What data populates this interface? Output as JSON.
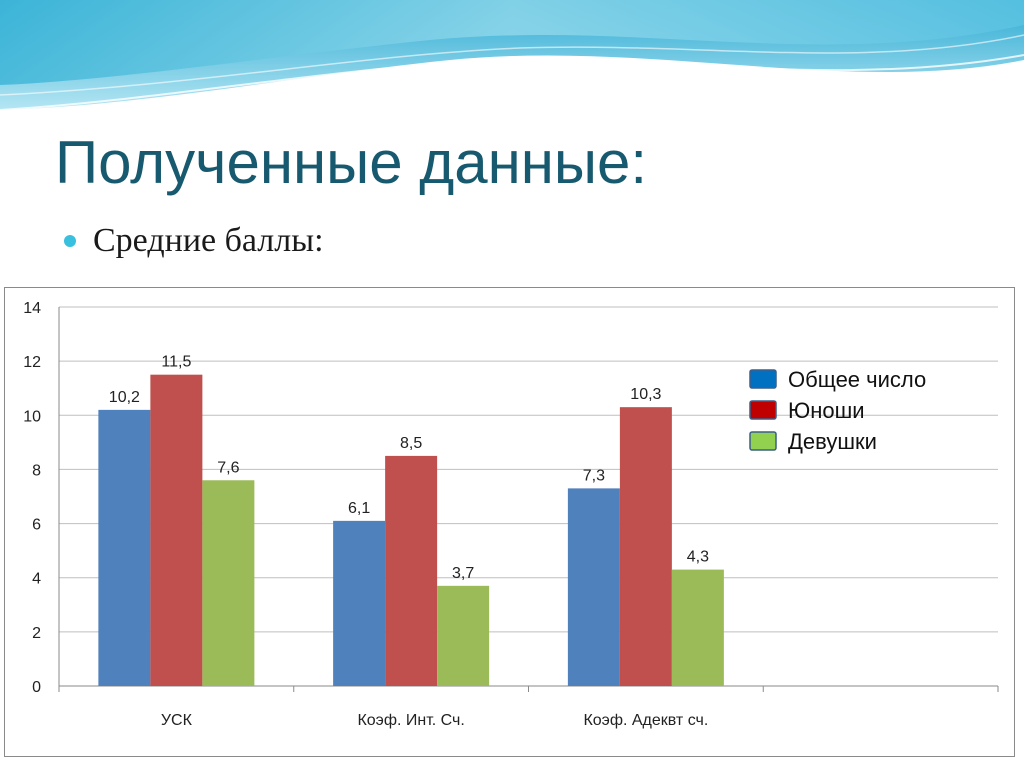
{
  "slide": {
    "title": "Полученные данные:",
    "bullet": "Средние баллы:"
  },
  "colors": {
    "title": "#17596e",
    "bullet": "#38c0de",
    "series": [
      "#4f81bd",
      "#c0504d",
      "#9bbb59"
    ],
    "legend_swatches": [
      "#0070c0",
      "#c00000",
      "#92d050"
    ]
  },
  "chart_data": {
    "type": "bar",
    "categories": [
      "УСК",
      "Коэф. Инт. Сч.",
      "Коэф. Адеквт сч."
    ],
    "series": [
      {
        "name": "Общее число",
        "values": [
          10.2,
          6.1,
          7.3
        ],
        "labels": [
          "10,2",
          "6,1",
          "7,3"
        ]
      },
      {
        "name": "Юноши",
        "values": [
          11.5,
          8.5,
          10.3
        ],
        "labels": [
          "11,5",
          "8,5",
          "10,3"
        ]
      },
      {
        "name": "Девушки",
        "values": [
          7.6,
          3.7,
          4.3
        ],
        "labels": [
          "7,6",
          "3,7",
          "4,3"
        ]
      }
    ],
    "ylim": [
      0,
      14
    ],
    "yticks": [
      0,
      2,
      4,
      6,
      8,
      10,
      12,
      14
    ],
    "grid": true,
    "legend": "top-right",
    "xlabel": "",
    "ylabel": ""
  }
}
